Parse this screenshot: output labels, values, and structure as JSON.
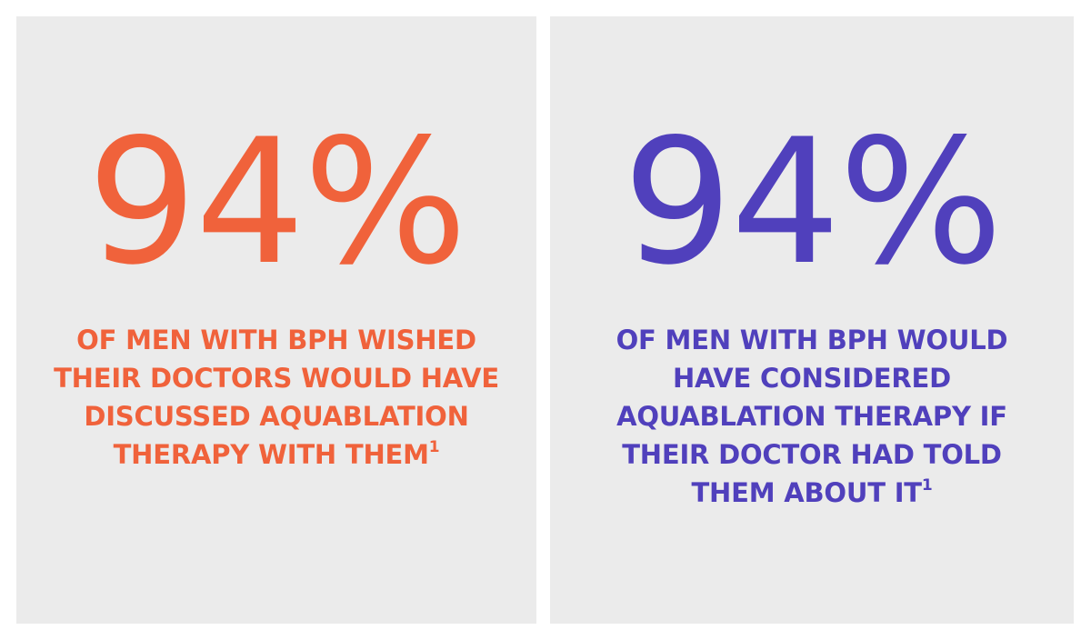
{
  "colors": {
    "background": "#ffffff",
    "panel": "#ebebeb",
    "left_accent": "#f0623b",
    "right_accent": "#5040bc"
  },
  "left": {
    "stat": "94%",
    "lines": [
      "OF MEN WITH BPH WISHED",
      "THEIR DOCTORS WOULD HAVE",
      "DISCUSSED AQUABLATION",
      "THERAPY WITH THEM"
    ],
    "footnote": "1"
  },
  "right": {
    "stat": "94%",
    "lines": [
      "OF MEN WITH BPH WOULD",
      "HAVE CONSIDERED",
      "AQUABLATION THERAPY IF",
      "THEIR DOCTOR HAD TOLD",
      "THEM ABOUT IT"
    ],
    "footnote": "1"
  }
}
